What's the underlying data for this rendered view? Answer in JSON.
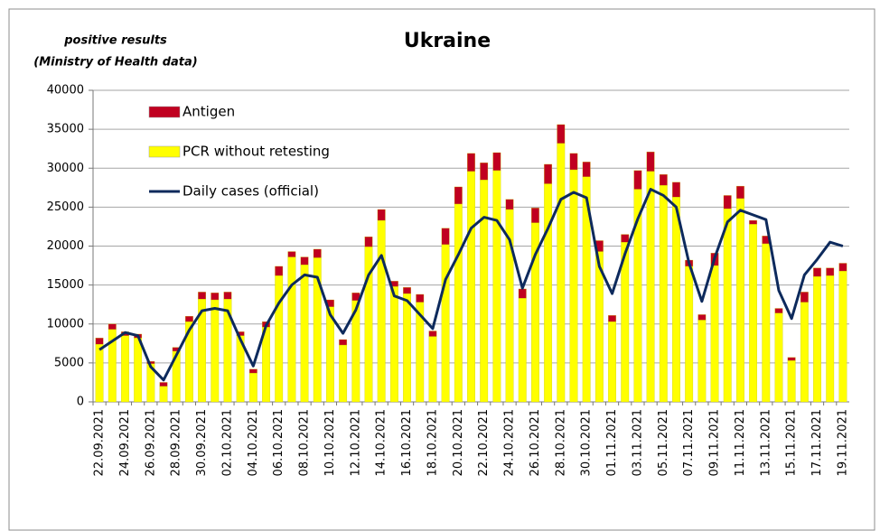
{
  "chart_data": {
    "type": "bar",
    "stacked": true,
    "title": "Ukraine",
    "ylabel": [
      "positive results",
      "(Ministry of Health data)"
    ],
    "categories": [
      "22.09.2021",
      null,
      "24.09.2021",
      null,
      "26.09.2021",
      null,
      "28.09.2021",
      null,
      "30.09.2021",
      null,
      "02.10.2021",
      null,
      "04.10.2021",
      null,
      "06.10.2021",
      null,
      "08.10.2021",
      null,
      "10.10.2021",
      null,
      "12.10.2021",
      null,
      "14.10.2021",
      null,
      "16.10.2021",
      null,
      "18.10.2021",
      null,
      "20.10.2021",
      null,
      "22.10.2021",
      null,
      "24.10.2021",
      null,
      "26.10.2021",
      null,
      "28.10.2021",
      null,
      "30.10.2021",
      null,
      "01.11.2021",
      null,
      "03.11.2021",
      null,
      "05.11.2021",
      null,
      "07.11.2021",
      null,
      "09.11.2021",
      null,
      "11.11.2021",
      null,
      "13.11.2021",
      null,
      "15.11.2021",
      null,
      "17.11.2021",
      null,
      "19.11.2021"
    ],
    "series": [
      {
        "name": "Antigen",
        "type": "bar",
        "color": "#c00020",
        "values": [
          800,
          700,
          500,
          500,
          300,
          500,
          500,
          700,
          900,
          900,
          900,
          500,
          500,
          700,
          1200,
          700,
          1000,
          1100,
          900,
          700,
          1000,
          1300,
          1400,
          700,
          800,
          1000,
          700,
          2100,
          2200,
          2300,
          2200,
          2300,
          1300,
          1200,
          1900,
          2500,
          2400,
          2100,
          1900,
          1400,
          800,
          1000,
          2400,
          2500,
          1400,
          1900,
          800,
          700,
          1600,
          1700,
          1600,
          500,
          1000,
          600,
          400,
          1300,
          1100,
          1000,
          1000
        ]
      },
      {
        "name": "PCR without retesting",
        "type": "bar",
        "color": "#ffff00",
        "values": [
          7400,
          9300,
          8500,
          8200,
          4900,
          2000,
          6500,
          10300,
          13200,
          13100,
          13200,
          8500,
          3700,
          9600,
          16200,
          18600,
          17600,
          18500,
          12200,
          7300,
          13000,
          19900,
          23300,
          14800,
          13900,
          12800,
          8400,
          20200,
          25400,
          29600,
          28500,
          29700,
          24700,
          13300,
          23000,
          28000,
          33200,
          29800,
          28900,
          19300,
          10300,
          20500,
          27300,
          29600,
          27800,
          26300,
          17400,
          10500,
          17500,
          24800,
          26100,
          22800,
          20300,
          11400,
          5300,
          12800,
          16100,
          16200,
          16800
        ]
      },
      {
        "name": "Daily cases (official)",
        "type": "line",
        "color": "#0d2a5c",
        "values": [
          6700,
          7800,
          8900,
          8500,
          4500,
          2800,
          6000,
          9200,
          11700,
          12000,
          11700,
          8000,
          4600,
          9800,
          12700,
          15000,
          16300,
          16000,
          11200,
          8800,
          11800,
          16300,
          18800,
          13600,
          13000,
          11200,
          9400,
          15700,
          18900,
          22300,
          23700,
          23300,
          20800,
          14600,
          18900,
          22300,
          26000,
          26900,
          26200,
          17400,
          13900,
          19000,
          23500,
          27300,
          26500,
          25000,
          17800,
          12900,
          18500,
          23100,
          24600,
          24000,
          23400,
          14300,
          10700,
          16300,
          18300,
          20500,
          20000
        ]
      }
    ],
    "ylim": [
      0,
      40000
    ],
    "yticks": [
      0,
      5000,
      10000,
      15000,
      20000,
      25000,
      30000,
      35000,
      40000
    ],
    "grid": true,
    "legend": "upper left"
  }
}
